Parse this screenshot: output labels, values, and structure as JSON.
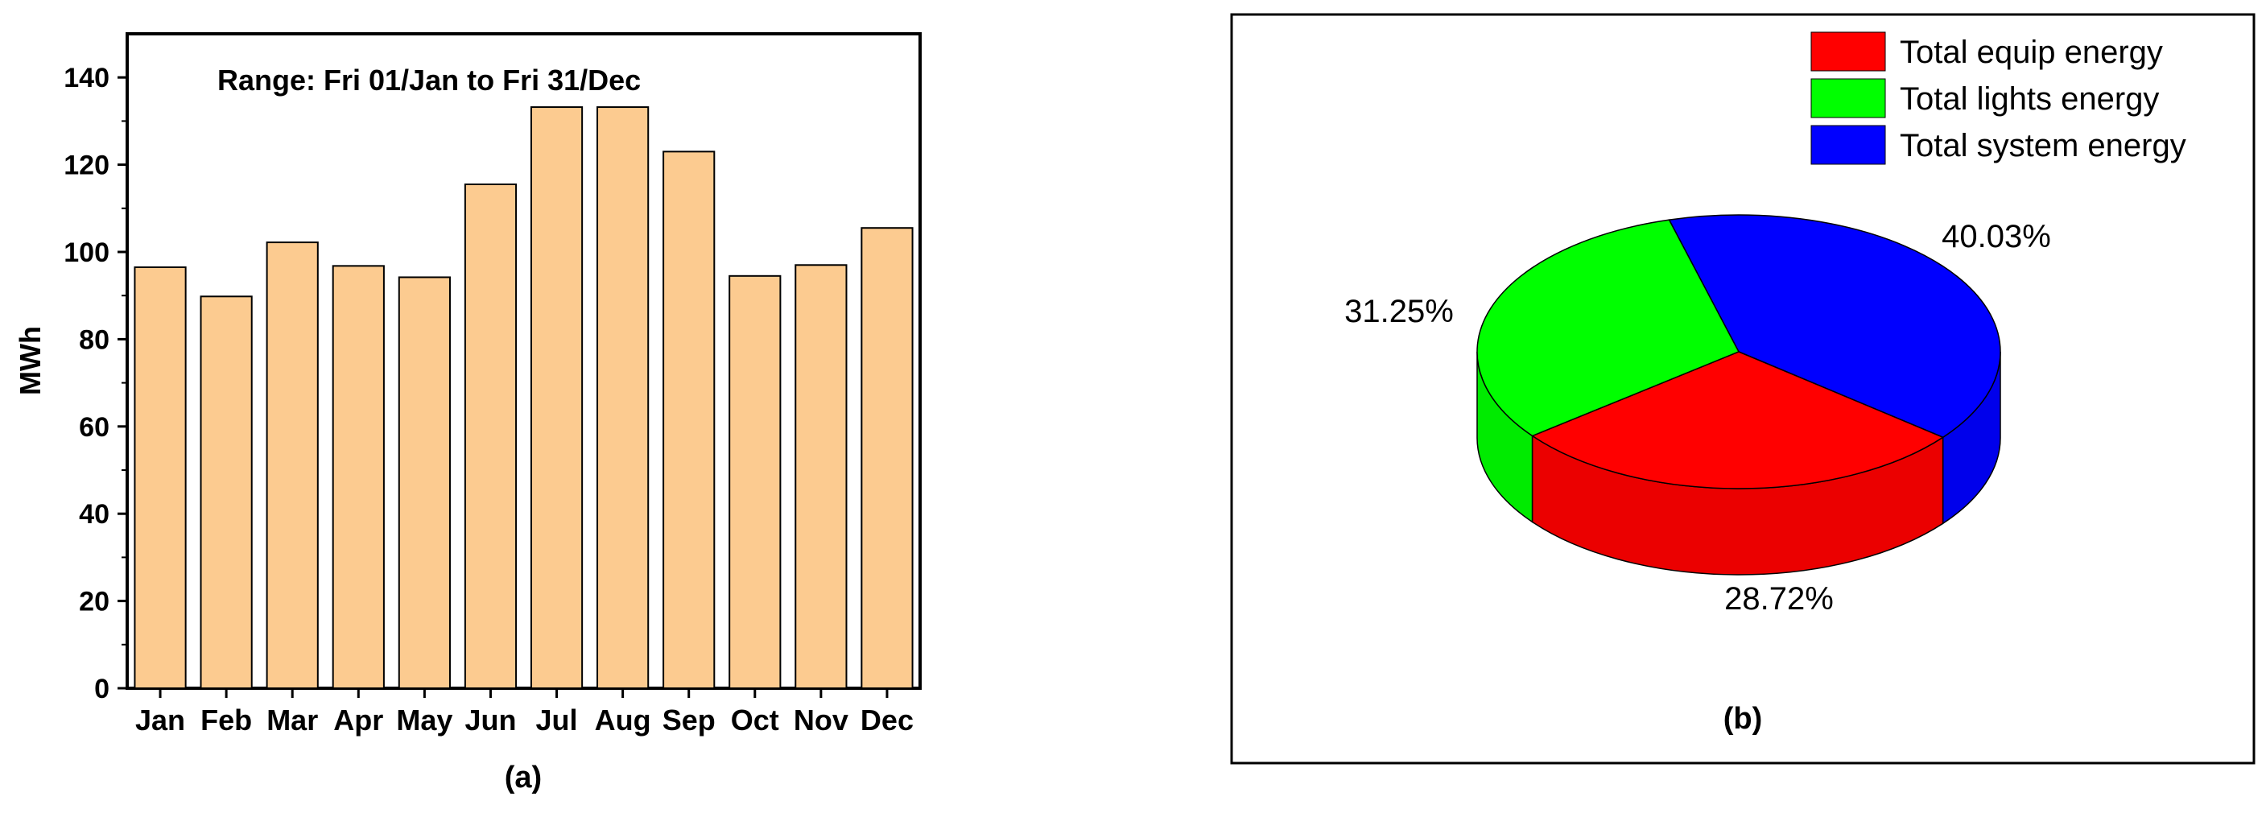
{
  "chart_data": [
    {
      "type": "bar",
      "annotation": "Range: Fri 01/Jan to Fri 31/Dec",
      "panel_label": "(a)",
      "ylabel": "MWh",
      "xlabel": "",
      "categories": [
        "Jan",
        "Feb",
        "Mar",
        "Apr",
        "May",
        "Jun",
        "Jul",
        "Aug",
        "Sep",
        "Oct",
        "Nov",
        "Dec"
      ],
      "values": [
        96.5,
        89.8,
        102.2,
        96.8,
        94.2,
        115.5,
        133.2,
        133.2,
        123.0,
        94.5,
        97.0,
        105.5
      ],
      "ylim": [
        0,
        150
      ],
      "yticks": [
        0,
        20,
        40,
        60,
        80,
        100,
        120,
        140
      ],
      "bar_color": "#fccb90",
      "grid": false
    },
    {
      "type": "pie",
      "style": "3d",
      "panel_label": "(b)",
      "legend_position": "top-right",
      "slices": [
        {
          "label": "Total equip energy",
          "value": 28.72,
          "display": "28.72%",
          "color": "#ff0000"
        },
        {
          "label": "Total lights energy",
          "value": 31.25,
          "display": "31.25%",
          "color": "#00ff00"
        },
        {
          "label": "Total system energy",
          "value": 40.03,
          "display": "40.03%",
          "color": "#0000ff"
        }
      ]
    }
  ]
}
